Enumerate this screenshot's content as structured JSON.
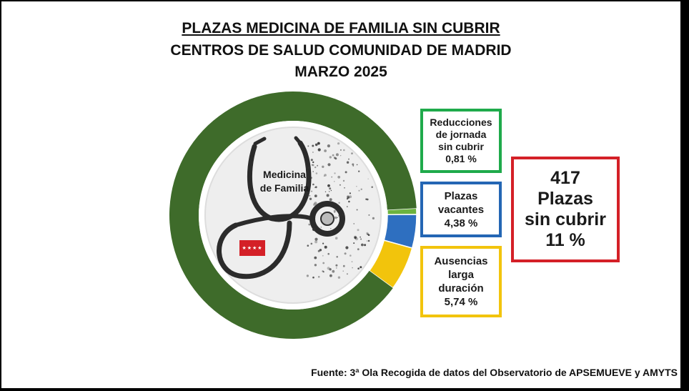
{
  "title": {
    "line1": "PLAZAS MEDICINA DE FAMILIA SIN CUBRIR",
    "line2": "CENTROS DE SALUD COMUNIDAD DE MADRID",
    "line3": "MARZO 2025"
  },
  "center_label": {
    "line1": "Medicina",
    "line2": "de Familia"
  },
  "flag_stars": "★★★★",
  "source": "Fuente: 3ª Ola Recogida de datos del Observatorio de APSEMUEVE y AMYTS",
  "boxes": {
    "reductions": {
      "l1": "Reducciones",
      "l2": "de jornada",
      "l3": "sin cubrir",
      "value": "0,81 %",
      "color": "#1faa4b"
    },
    "vacancies": {
      "l1": "Plazas",
      "l2": "vacantes",
      "value": "4,38 %",
      "color": "#2466b4"
    },
    "absences": {
      "l1": "Ausencias",
      "l2": "larga",
      "l3": "duración",
      "value": "5,74 %",
      "color": "#f2c40c"
    },
    "total": {
      "count": "417",
      "l1": "Plazas",
      "l2": "sin cubrir",
      "pct": "11 %",
      "color": "#d42027"
    }
  },
  "chart_data": {
    "type": "pie",
    "labels": [
      "Reducciones de jornada sin cubrir",
      "Plazas vacantes",
      "Ausencias larga duración",
      ""
    ],
    "values": [
      0.81,
      4.38,
      5.74,
      89.07
    ],
    "colors": [
      "#6cb33f",
      "#2e6fc0",
      "#f2c40c",
      "#3e6b2a"
    ]
  }
}
